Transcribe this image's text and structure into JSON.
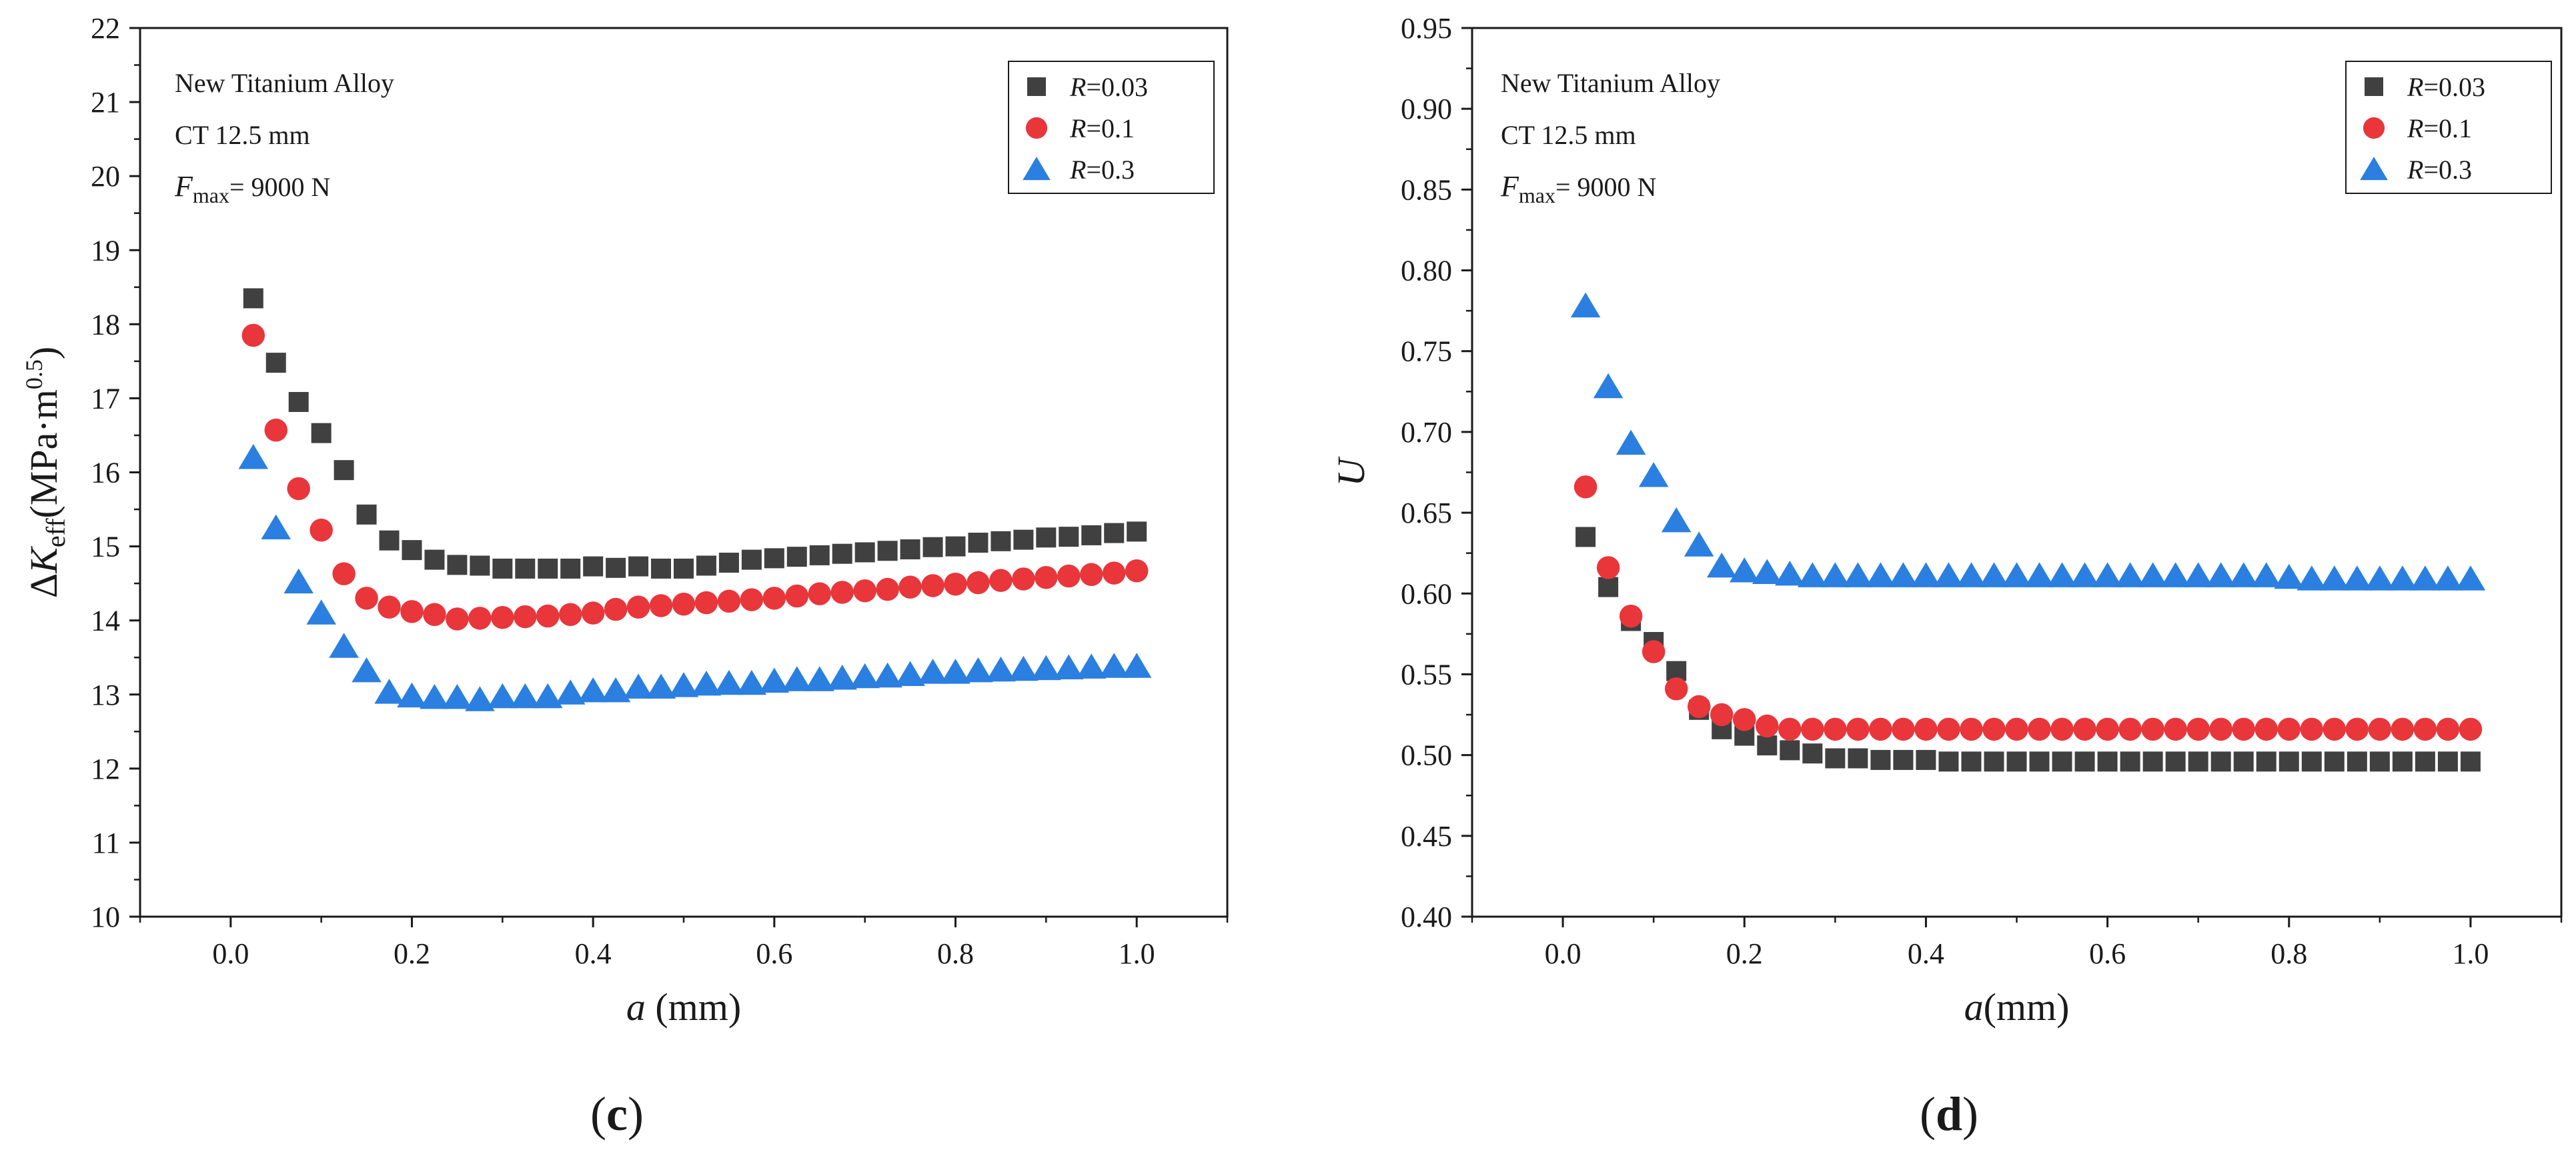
{
  "chart_data": [
    {
      "type": "scatter",
      "panel_label": {
        "open": "(",
        "letter": "c",
        "close": ")"
      },
      "x_label": {
        "var": "a",
        "unit": " (mm)"
      },
      "y_label": {
        "delta": "Δ",
        "var": "K",
        "sub": "eff",
        "unit": "(MPa·m",
        "sup": "0.5",
        "close": ")"
      },
      "xlim": [
        -0.1,
        1.1
      ],
      "ylim": [
        10,
        22
      ],
      "x_ticks": [
        0.0,
        0.2,
        0.4,
        0.6,
        0.8,
        1.0
      ],
      "x_tick_labels": [
        "0.0",
        "0.2",
        "0.4",
        "0.6",
        "0.8",
        "1.0"
      ],
      "y_ticks": [
        10,
        11,
        12,
        13,
        14,
        15,
        16,
        17,
        18,
        19,
        20,
        21,
        22
      ],
      "y_tick_labels": [
        "10",
        "11",
        "12",
        "13",
        "14",
        "15",
        "16",
        "17",
        "18",
        "19",
        "20",
        "21",
        "22"
      ],
      "grid": false,
      "legend_position": "top-right",
      "annotations": [
        {
          "text": "New Titanium Alloy"
        },
        {
          "text": "CT 12.5 mm"
        },
        {
          "var": "F",
          "sub": "max",
          "text": "= 9000 N"
        }
      ],
      "series": [
        {
          "name_var": "R",
          "name_val": "=0.03",
          "marker": "square",
          "color": "#404040",
          "x": [
            0.025,
            0.05,
            0.075,
            0.1,
            0.125,
            0.15,
            0.175,
            0.2,
            0.225,
            0.25,
            0.275,
            0.3,
            0.325,
            0.35,
            0.375,
            0.4,
            0.425,
            0.45,
            0.475,
            0.5,
            0.525,
            0.55,
            0.575,
            0.6,
            0.625,
            0.65,
            0.675,
            0.7,
            0.725,
            0.75,
            0.775,
            0.8,
            0.825,
            0.85,
            0.875,
            0.9,
            0.925,
            0.95,
            0.975,
            1.0
          ],
          "y": [
            18.35,
            17.48,
            16.95,
            16.53,
            16.03,
            15.43,
            15.08,
            14.95,
            14.82,
            14.75,
            14.74,
            14.7,
            14.7,
            14.7,
            14.7,
            14.73,
            14.71,
            14.73,
            14.7,
            14.7,
            14.74,
            14.78,
            14.82,
            14.84,
            14.86,
            14.88,
            14.9,
            14.92,
            14.94,
            14.96,
            14.99,
            15.0,
            15.05,
            15.07,
            15.09,
            15.12,
            15.13,
            15.15,
            15.18,
            15.2
          ]
        },
        {
          "name_var": "R",
          "name_val": "=0.1",
          "marker": "circle",
          "color": "#e8363b",
          "x": [
            0.025,
            0.05,
            0.075,
            0.1,
            0.125,
            0.15,
            0.175,
            0.2,
            0.225,
            0.25,
            0.275,
            0.3,
            0.325,
            0.35,
            0.375,
            0.4,
            0.425,
            0.45,
            0.475,
            0.5,
            0.525,
            0.55,
            0.575,
            0.6,
            0.625,
            0.65,
            0.675,
            0.7,
            0.725,
            0.75,
            0.775,
            0.8,
            0.825,
            0.85,
            0.875,
            0.9,
            0.925,
            0.95,
            0.975,
            1.0
          ],
          "y": [
            17.85,
            16.57,
            15.78,
            15.22,
            14.63,
            14.3,
            14.18,
            14.12,
            14.08,
            14.02,
            14.03,
            14.04,
            14.05,
            14.06,
            14.08,
            14.1,
            14.15,
            14.18,
            14.2,
            14.22,
            14.24,
            14.26,
            14.28,
            14.3,
            14.33,
            14.36,
            14.38,
            14.4,
            14.42,
            14.45,
            14.47,
            14.49,
            14.51,
            14.54,
            14.56,
            14.58,
            14.6,
            14.62,
            14.64,
            14.67
          ]
        },
        {
          "name_var": "R",
          "name_val": "=0.3",
          "marker": "triangle",
          "color": "#2a7fe0",
          "x": [
            0.025,
            0.05,
            0.075,
            0.1,
            0.125,
            0.15,
            0.175,
            0.2,
            0.225,
            0.25,
            0.275,
            0.3,
            0.325,
            0.35,
            0.375,
            0.4,
            0.425,
            0.45,
            0.475,
            0.5,
            0.525,
            0.55,
            0.575,
            0.6,
            0.625,
            0.65,
            0.675,
            0.7,
            0.725,
            0.75,
            0.775,
            0.8,
            0.825,
            0.85,
            0.875,
            0.9,
            0.925,
            0.95,
            0.975,
            1.0
          ],
          "y": [
            16.2,
            15.25,
            14.52,
            14.1,
            13.65,
            13.32,
            13.03,
            12.98,
            12.96,
            12.96,
            12.93,
            12.97,
            12.97,
            12.97,
            13.02,
            13.05,
            13.05,
            13.1,
            13.1,
            13.12,
            13.14,
            13.15,
            13.15,
            13.18,
            13.2,
            13.2,
            13.22,
            13.24,
            13.25,
            13.27,
            13.3,
            13.3,
            13.32,
            13.33,
            13.34,
            13.35,
            13.36,
            13.37,
            13.38,
            13.38
          ]
        }
      ]
    },
    {
      "type": "scatter",
      "panel_label": {
        "open": "(",
        "letter": "d",
        "close": ")"
      },
      "x_label": {
        "var": "a",
        "unit": "(mm)"
      },
      "y_label": {
        "var": "U"
      },
      "xlim": [
        -0.1,
        1.1
      ],
      "ylim": [
        0.4,
        0.95
      ],
      "x_ticks": [
        0.0,
        0.2,
        0.4,
        0.6,
        0.8,
        1.0
      ],
      "x_tick_labels": [
        "0.0",
        "0.2",
        "0.4",
        "0.6",
        "0.8",
        "1.0"
      ],
      "y_ticks": [
        0.4,
        0.45,
        0.5,
        0.55,
        0.6,
        0.65,
        0.7,
        0.75,
        0.8,
        0.85,
        0.9,
        0.95
      ],
      "y_tick_labels": [
        "0.40",
        "0.45",
        "0.50",
        "0.55",
        "0.60",
        "0.65",
        "0.70",
        "0.75",
        "0.80",
        "0.85",
        "0.90",
        "0.95"
      ],
      "grid": false,
      "legend_position": "top-right",
      "annotations": [
        {
          "text": "New Titanium Alloy"
        },
        {
          "text": "CT 12.5 mm"
        },
        {
          "var": "F",
          "sub": "max",
          "text": "= 9000 N"
        }
      ],
      "series": [
        {
          "name_var": "R",
          "name_val": "=0.03",
          "marker": "square",
          "color": "#404040",
          "x": [
            0.025,
            0.05,
            0.075,
            0.1,
            0.125,
            0.15,
            0.175,
            0.2,
            0.225,
            0.25,
            0.275,
            0.3,
            0.325,
            0.35,
            0.375,
            0.4,
            0.425,
            0.45,
            0.475,
            0.5,
            0.525,
            0.55,
            0.575,
            0.6,
            0.625,
            0.65,
            0.675,
            0.7,
            0.725,
            0.75,
            0.775,
            0.8,
            0.825,
            0.85,
            0.875,
            0.9,
            0.925,
            0.95,
            0.975,
            1.0
          ],
          "y": [
            0.635,
            0.604,
            0.583,
            0.57,
            0.552,
            0.528,
            0.516,
            0.512,
            0.506,
            0.503,
            0.501,
            0.498,
            0.498,
            0.497,
            0.497,
            0.497,
            0.496,
            0.496,
            0.496,
            0.496,
            0.496,
            0.496,
            0.496,
            0.496,
            0.496,
            0.496,
            0.496,
            0.496,
            0.496,
            0.496,
            0.496,
            0.496,
            0.496,
            0.496,
            0.496,
            0.496,
            0.496,
            0.496,
            0.496,
            0.496
          ]
        },
        {
          "name_var": "R",
          "name_val": "=0.1",
          "marker": "circle",
          "color": "#e8363b",
          "x": [
            0.025,
            0.05,
            0.075,
            0.1,
            0.125,
            0.15,
            0.175,
            0.2,
            0.225,
            0.25,
            0.275,
            0.3,
            0.325,
            0.35,
            0.375,
            0.4,
            0.425,
            0.45,
            0.475,
            0.5,
            0.525,
            0.55,
            0.575,
            0.6,
            0.625,
            0.65,
            0.675,
            0.7,
            0.725,
            0.75,
            0.775,
            0.8,
            0.825,
            0.85,
            0.875,
            0.9,
            0.925,
            0.95,
            0.975,
            1.0
          ],
          "y": [
            0.666,
            0.616,
            0.586,
            0.564,
            0.541,
            0.53,
            0.525,
            0.522,
            0.518,
            0.516,
            0.516,
            0.516,
            0.516,
            0.516,
            0.516,
            0.516,
            0.516,
            0.516,
            0.516,
            0.516,
            0.516,
            0.516,
            0.516,
            0.516,
            0.516,
            0.516,
            0.516,
            0.516,
            0.516,
            0.516,
            0.516,
            0.516,
            0.516,
            0.516,
            0.516,
            0.516,
            0.516,
            0.516,
            0.516,
            0.516
          ]
        },
        {
          "name_var": "R",
          "name_val": "=0.3",
          "marker": "triangle",
          "color": "#2a7fe0",
          "x": [
            0.025,
            0.05,
            0.075,
            0.1,
            0.125,
            0.15,
            0.175,
            0.2,
            0.225,
            0.25,
            0.275,
            0.3,
            0.325,
            0.35,
            0.375,
            0.4,
            0.425,
            0.45,
            0.475,
            0.5,
            0.525,
            0.55,
            0.575,
            0.6,
            0.625,
            0.65,
            0.675,
            0.7,
            0.725,
            0.75,
            0.775,
            0.8,
            0.825,
            0.85,
            0.875,
            0.9,
            0.925,
            0.95,
            0.975,
            1.0
          ],
          "y": [
            0.778,
            0.728,
            0.693,
            0.673,
            0.645,
            0.63,
            0.617,
            0.614,
            0.613,
            0.612,
            0.611,
            0.611,
            0.611,
            0.611,
            0.611,
            0.611,
            0.611,
            0.611,
            0.611,
            0.611,
            0.611,
            0.611,
            0.611,
            0.611,
            0.611,
            0.611,
            0.611,
            0.611,
            0.611,
            0.611,
            0.611,
            0.61,
            0.609,
            0.609,
            0.609,
            0.609,
            0.609,
            0.609,
            0.609,
            0.609
          ]
        }
      ]
    }
  ]
}
